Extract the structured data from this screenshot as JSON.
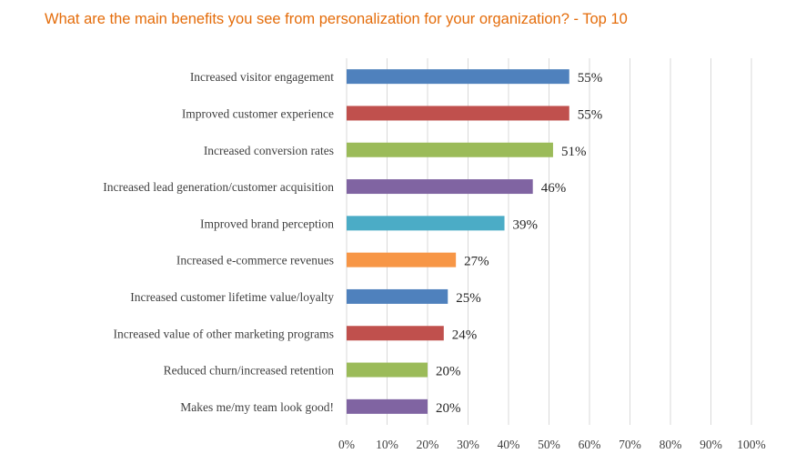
{
  "title": "What are the main benefits you see from personalization for your organization? - Top 10",
  "chart_data": {
    "type": "bar",
    "orientation": "horizontal",
    "categories": [
      "Increased visitor engagement",
      "Improved customer experience",
      "Increased conversion rates",
      "Increased lead generation/customer acquisition",
      "Improved brand perception",
      "Increased e-commerce revenues",
      "Increased customer lifetime value/loyalty",
      "Increased value of other marketing programs",
      "Reduced churn/increased retention",
      "Makes me/my team look good!"
    ],
    "values": [
      55,
      55,
      51,
      46,
      39,
      27,
      25,
      24,
      20,
      20
    ],
    "value_labels": [
      "55%",
      "55%",
      "51%",
      "46%",
      "39%",
      "27%",
      "25%",
      "24%",
      "20%",
      "20%"
    ],
    "colors": [
      "#4f81bd",
      "#c0504d",
      "#9bbb59",
      "#8064a2",
      "#4bacc6",
      "#f79646",
      "#4f81bd",
      "#c0504d",
      "#9bbb59",
      "#8064a2"
    ],
    "xlim": [
      0,
      100
    ],
    "xticks": [
      "0%",
      "10%",
      "20%",
      "30%",
      "40%",
      "50%",
      "60%",
      "70%",
      "80%",
      "90%",
      "100%"
    ],
    "grid": true,
    "legend": "none"
  }
}
